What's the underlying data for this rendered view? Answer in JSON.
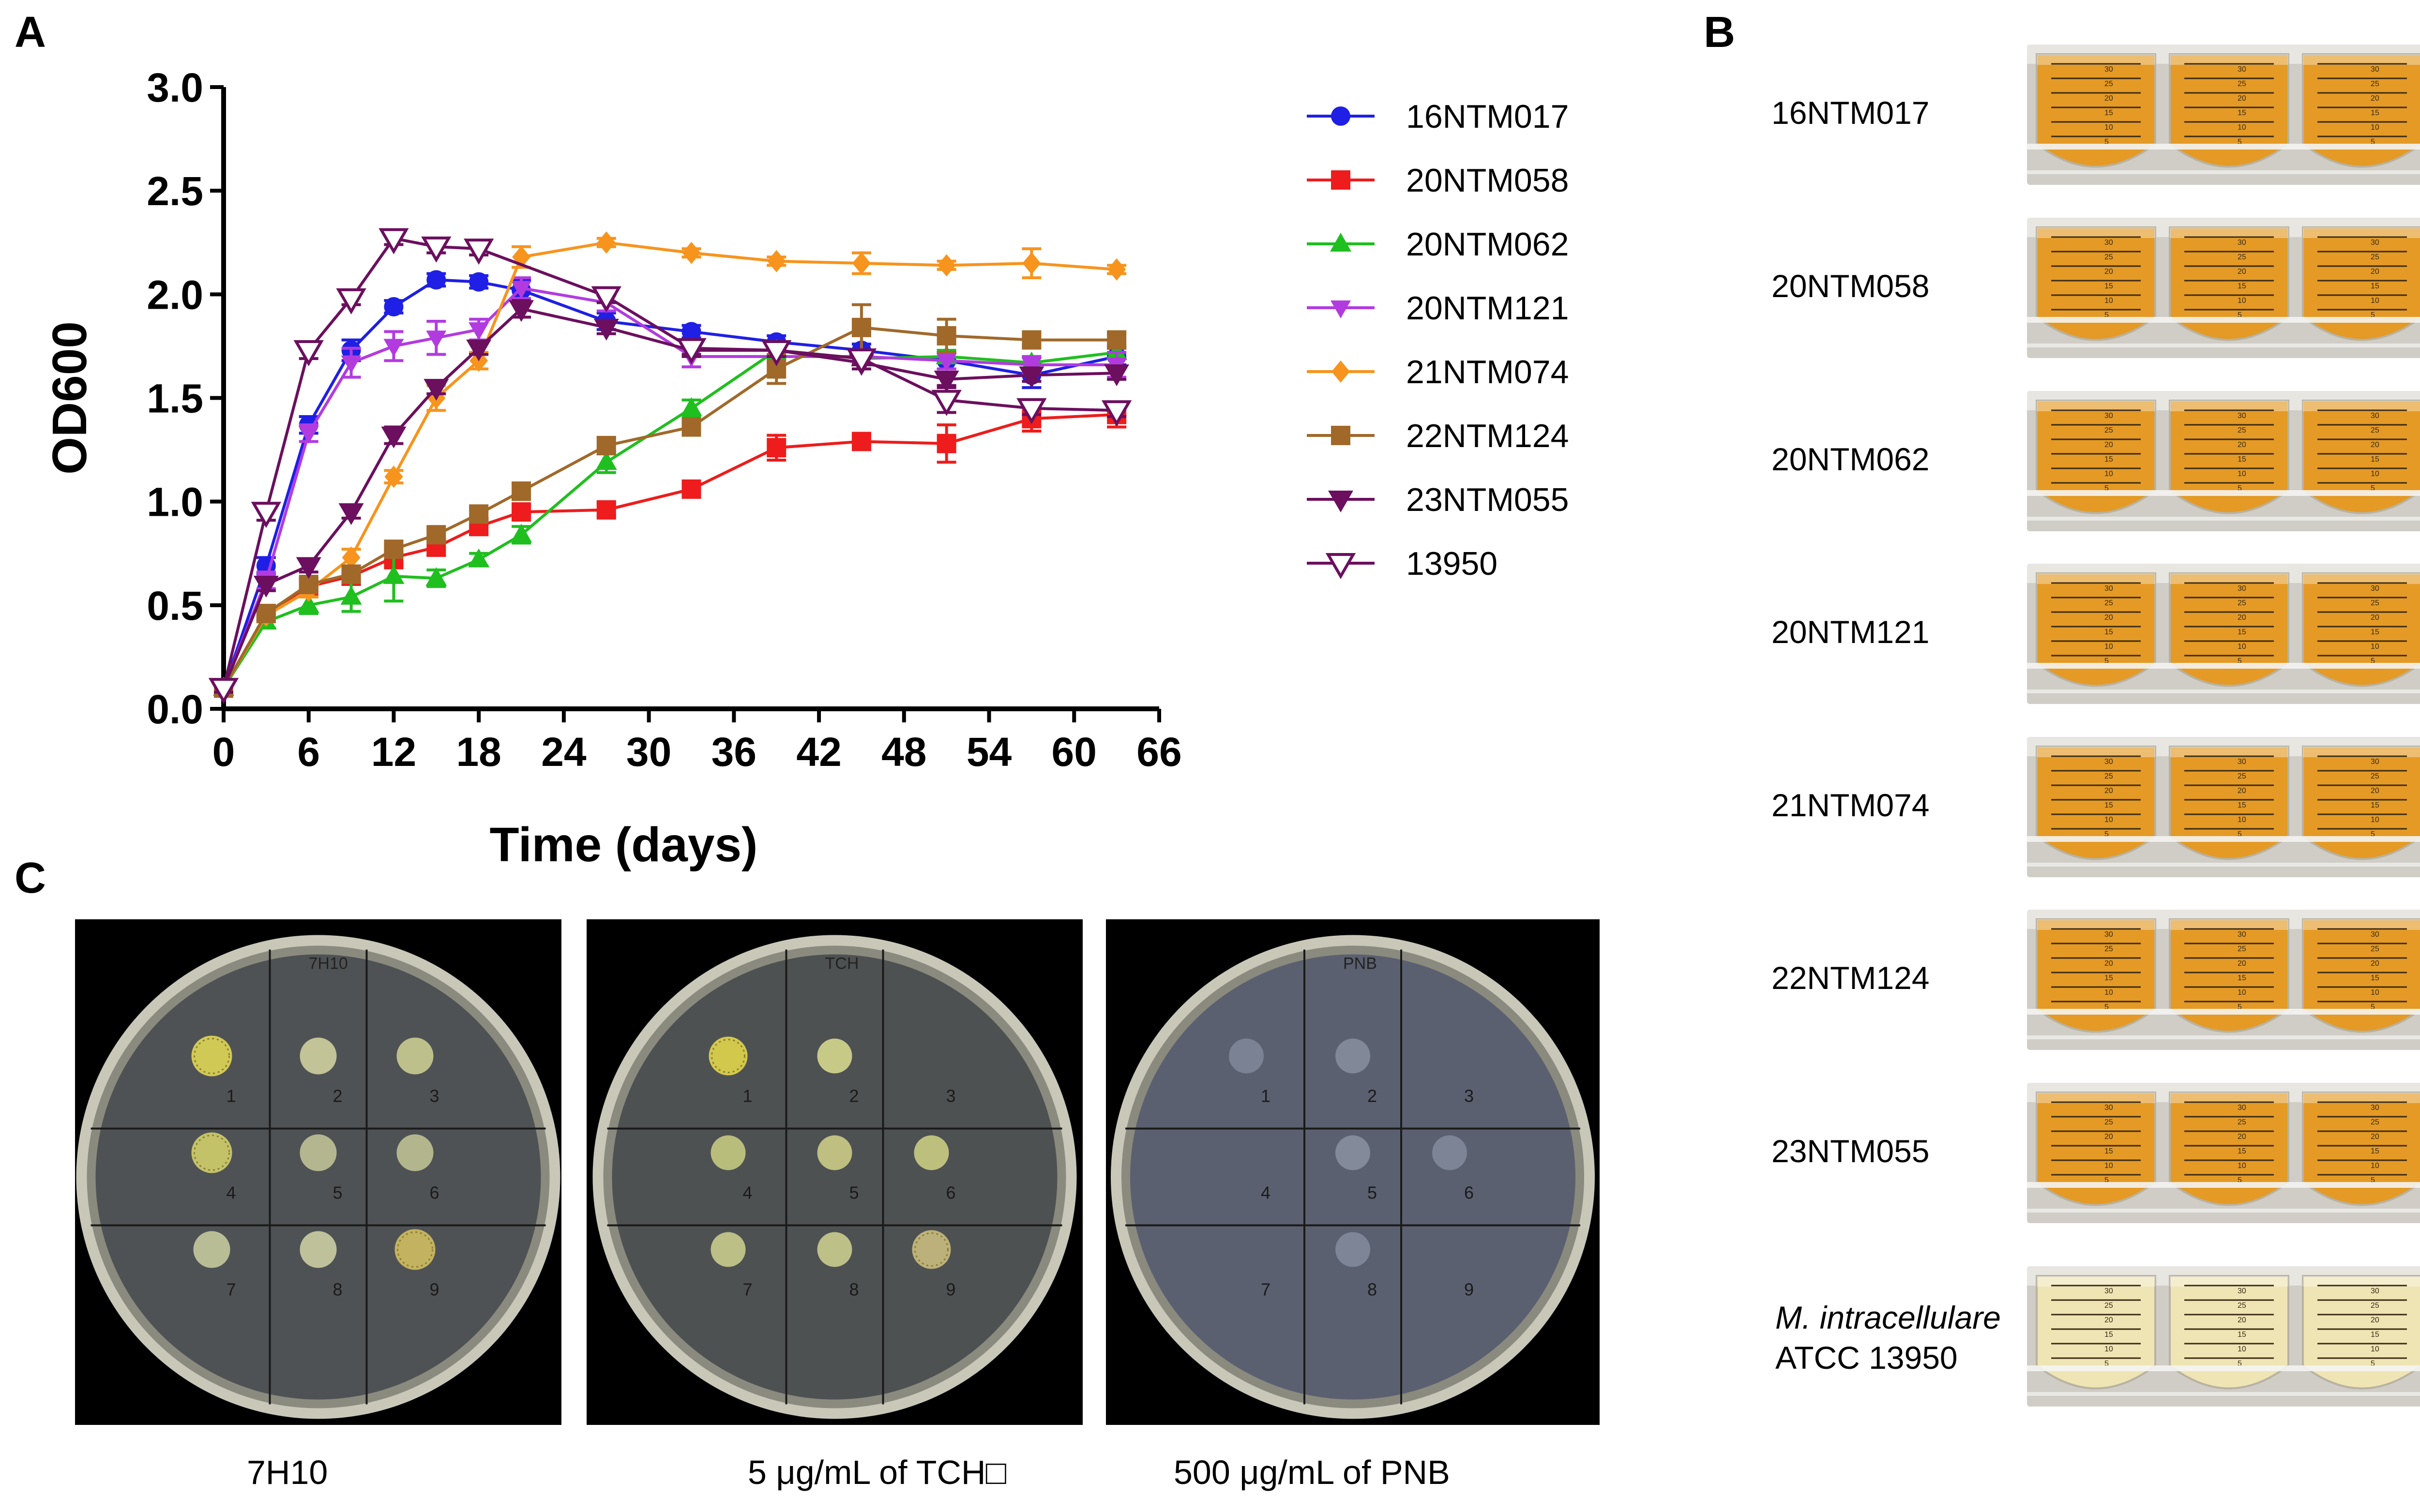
{
  "panels": {
    "a_label": "A",
    "b_label": "B",
    "c_label": "C"
  },
  "chart_data": {
    "type": "line",
    "title": "",
    "xlabel": "Time (days)",
    "ylabel": "OD600",
    "xlim": [
      0,
      66
    ],
    "ylim": [
      0,
      3.0
    ],
    "xticks": [
      "0",
      "6",
      "12",
      "18",
      "24",
      "30",
      "36",
      "42",
      "48",
      "54",
      "60",
      "66"
    ],
    "yticks": [
      "0.0",
      "0.5",
      "1.0",
      "1.5",
      "2.0",
      "2.5",
      "3.0"
    ],
    "grid": false,
    "legend_position": "right",
    "series": [
      {
        "name": "16NTM017",
        "color": "#1f1fe6",
        "marker": "circle",
        "x": [
          0,
          3,
          6,
          9,
          12,
          15,
          18,
          21,
          27,
          33,
          39,
          45,
          51,
          57,
          63
        ],
        "y": [
          0.1,
          0.69,
          1.37,
          1.73,
          1.94,
          2.07,
          2.06,
          2.02,
          1.87,
          1.82,
          1.77,
          1.73,
          1.68,
          1.61,
          1.7
        ],
        "err": [
          0.02,
          0.04,
          0.04,
          0.05,
          0.03,
          0.03,
          0.03,
          0.05,
          0.04,
          0.03,
          0.03,
          0.03,
          0.04,
          0.06,
          0.04
        ]
      },
      {
        "name": "20NTM058",
        "color": "#ee1c1c",
        "marker": "square",
        "x": [
          0,
          3,
          6,
          9,
          12,
          15,
          18,
          21,
          27,
          33,
          39,
          45,
          51,
          57,
          63
        ],
        "y": [
          0.1,
          0.46,
          0.59,
          0.64,
          0.73,
          0.78,
          0.88,
          0.95,
          0.96,
          1.06,
          1.26,
          1.29,
          1.28,
          1.4,
          1.42
        ],
        "err": [
          0.02,
          0.03,
          0.03,
          0.04,
          0.05,
          0.04,
          0.04,
          0.03,
          0.03,
          0.03,
          0.06,
          0.03,
          0.09,
          0.06,
          0.06
        ]
      },
      {
        "name": "20NTM062",
        "color": "#1fbf1f",
        "marker": "triangle-up",
        "x": [
          0,
          3,
          6,
          9,
          12,
          15,
          18,
          21,
          27,
          33,
          39,
          45,
          51,
          57,
          63
        ],
        "y": [
          0.1,
          0.42,
          0.5,
          0.54,
          0.64,
          0.63,
          0.72,
          0.84,
          1.19,
          1.45,
          1.73,
          1.69,
          1.7,
          1.67,
          1.72
        ],
        "err": [
          0.02,
          0.03,
          0.04,
          0.07,
          0.12,
          0.04,
          0.03,
          0.04,
          0.05,
          0.04,
          0.04,
          0.03,
          0.03,
          0.03,
          0.03
        ]
      },
      {
        "name": "20NTM121",
        "color": "#b23be0",
        "marker": "triangle-down",
        "x": [
          0,
          3,
          6,
          9,
          12,
          15,
          18,
          21,
          27,
          33,
          39,
          45,
          51,
          57,
          63
        ],
        "y": [
          0.1,
          0.62,
          1.33,
          1.67,
          1.75,
          1.79,
          1.83,
          2.03,
          1.96,
          1.7,
          1.7,
          1.7,
          1.68,
          1.66,
          1.66
        ],
        "err": [
          0.02,
          0.04,
          0.04,
          0.07,
          0.07,
          0.08,
          0.05,
          0.05,
          0.04,
          0.05,
          0.03,
          0.03,
          0.04,
          0.04,
          0.06
        ]
      },
      {
        "name": "21NTM074",
        "color": "#f7941d",
        "marker": "diamond",
        "x": [
          0,
          3,
          6,
          9,
          12,
          15,
          18,
          21,
          27,
          33,
          39,
          45,
          51,
          57,
          63
        ],
        "y": [
          0.1,
          0.45,
          0.57,
          0.73,
          1.12,
          1.5,
          1.68,
          2.18,
          2.25,
          2.2,
          2.16,
          2.15,
          2.14,
          2.15,
          2.12
        ],
        "err": [
          0.02,
          0.03,
          0.03,
          0.04,
          0.03,
          0.06,
          0.04,
          0.05,
          0.02,
          0.02,
          0.02,
          0.05,
          0.02,
          0.07,
          0.02
        ]
      },
      {
        "name": "22NTM124",
        "color": "#a0692a",
        "marker": "square",
        "x": [
          0,
          3,
          6,
          9,
          12,
          15,
          18,
          21,
          27,
          33,
          39,
          45,
          51,
          57,
          63
        ],
        "y": [
          0.1,
          0.46,
          0.6,
          0.65,
          0.77,
          0.84,
          0.94,
          1.05,
          1.27,
          1.36,
          1.64,
          1.84,
          1.8,
          1.78,
          1.78
        ],
        "err": [
          0.02,
          0.03,
          0.03,
          0.03,
          0.03,
          0.03,
          0.03,
          0.04,
          0.04,
          0.04,
          0.07,
          0.11,
          0.08,
          0.03,
          0.03
        ]
      },
      {
        "name": "23NTM055",
        "color": "#6b0f5e",
        "marker": "triangle-down-filled",
        "x": [
          0,
          3,
          6,
          9,
          12,
          15,
          18,
          21,
          27,
          33,
          39,
          45,
          51,
          57,
          63
        ],
        "y": [
          0.1,
          0.6,
          0.69,
          0.95,
          1.32,
          1.55,
          1.74,
          1.93,
          1.84,
          1.73,
          1.73,
          1.67,
          1.59,
          1.61,
          1.62
        ],
        "err": [
          0.02,
          0.03,
          0.03,
          0.03,
          0.04,
          0.03,
          0.03,
          0.04,
          0.03,
          0.03,
          0.03,
          0.03,
          0.03,
          0.03,
          0.03
        ]
      },
      {
        "name": "13950",
        "color": "#6b0f5e",
        "marker": "triangle-down-open",
        "x": [
          0,
          3,
          6,
          9,
          12,
          15,
          18,
          27,
          33,
          39,
          45,
          51,
          57,
          63
        ],
        "y": [
          0.1,
          0.95,
          1.73,
          1.98,
          2.27,
          2.23,
          2.22,
          1.99,
          1.74,
          1.73,
          1.69,
          1.49,
          1.45,
          1.44
        ],
        "err": [
          0.02,
          0.04,
          0.04,
          0.03,
          0.03,
          0.03,
          0.03,
          0.03,
          0.03,
          0.03,
          0.03,
          0.06,
          0.03,
          0.03
        ]
      }
    ]
  },
  "tubes": {
    "labels": [
      "16NTM017",
      "20NTM058",
      "20NTM062",
      "20NTM121",
      "21NTM074",
      "22NTM124",
      "23NTM055"
    ],
    "last_label_italic": "M. intracellulare",
    "last_label_rest": "ATCC 13950",
    "scale_marks": [
      "30",
      "25",
      "20",
      "15",
      "10",
      "5"
    ],
    "culture_color": "#e49a25",
    "last_culture_color": "#efe5b4"
  },
  "plates": {
    "captions": [
      "7H10",
      "5 μg/mL of TCH□",
      "500 μg/mL of PNB"
    ],
    "lid_labels": [
      "7H10",
      "TCH",
      "PNB"
    ],
    "section_numbers": [
      "1",
      "2",
      "3",
      "4",
      "5",
      "6",
      "7",
      "8",
      "9"
    ]
  }
}
